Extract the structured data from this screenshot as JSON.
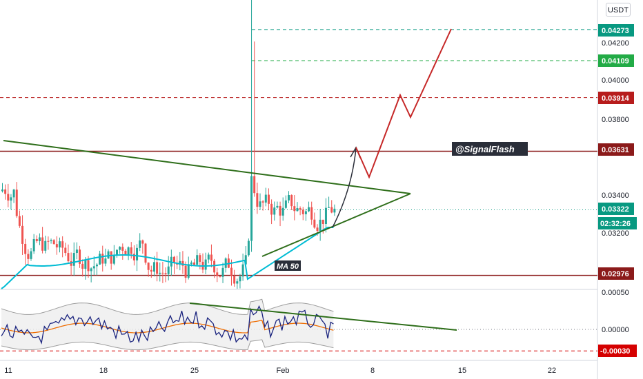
{
  "toolbar": {
    "currency_label": "USDT"
  },
  "chart_data": [
    {
      "type": "candlestick",
      "x_ticks": [
        "11",
        "18",
        "25",
        "Feb",
        "8",
        "15",
        "22"
      ],
      "y_ticks": [
        "0.04200",
        "0.04000",
        "0.03800",
        "0.03400",
        "0.03200"
      ],
      "price_markers": [
        {
          "value": "0.04273",
          "color": "#089981",
          "line": "dashed"
        },
        {
          "value": "0.04109",
          "color": "#22ab46",
          "line": "dashed"
        },
        {
          "value": "0.03914",
          "color": "#b71c1c",
          "line": "dashed"
        },
        {
          "value": "0.03631",
          "color": "#8b1a1a",
          "line": "solid"
        },
        {
          "value": "0.03322",
          "color": "#089981",
          "line": "dotted"
        },
        {
          "value": "0.02976",
          "color": "#8b1a1a",
          "line": "solid"
        }
      ],
      "countdown": "02:32:26",
      "watermark": "@SignalFlash",
      "ma_label": "MA 50",
      "annotations": [
        "symmetrical triangle",
        "projected zigzag breakout path",
        "curved breakout arrow"
      ],
      "colors": {
        "up": "#26a69a",
        "down": "#ef5350",
        "ma": "#00bcd4",
        "triangle": "#2e6e1a",
        "projection": "#c62828"
      }
    },
    {
      "type": "line",
      "y_ticks": [
        "0.00050",
        "0.00000"
      ],
      "price_markers": [
        {
          "value": "-0.00030",
          "color": "#d50000",
          "line": "dashed"
        }
      ],
      "series": [
        "oscillator",
        "signal",
        "bands"
      ],
      "colors": {
        "oscillator": "#1a237e",
        "signal": "#ef6c00",
        "bands": "#9e9e9e"
      }
    }
  ]
}
